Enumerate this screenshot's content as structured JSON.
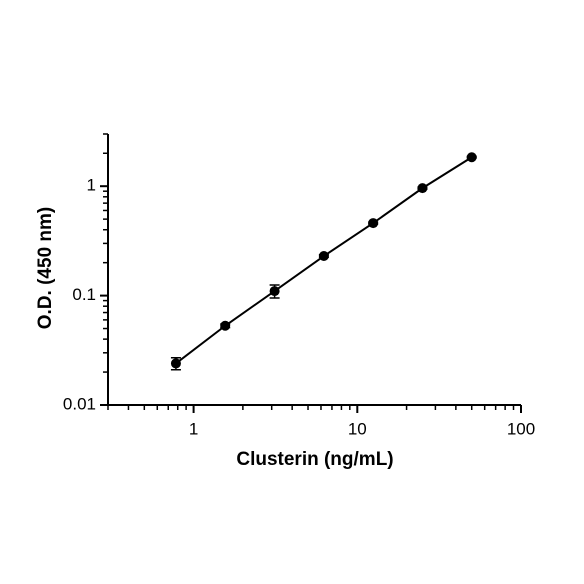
{
  "chart_data": {
    "type": "scatter",
    "x_label": "Clusterin (ng/mL)",
    "y_label": "O.D. (450 nm)",
    "x_log": true,
    "y_log": true,
    "xlim": [
      0.3,
      100
    ],
    "ylim": [
      0.01,
      3
    ],
    "xticks": [
      1,
      10,
      100
    ],
    "yticks": [
      0.01,
      0.1,
      1
    ],
    "xminorticks": [
      0.3,
      0.4,
      0.5,
      0.6,
      0.7,
      0.8,
      0.9,
      2,
      3,
      4,
      5,
      6,
      7,
      8,
      9,
      20,
      30,
      40,
      50,
      60,
      70,
      80,
      90
    ],
    "yminorticks": [
      0.02,
      0.03,
      0.04,
      0.05,
      0.06,
      0.07,
      0.08,
      0.09,
      0.2,
      0.3,
      0.4,
      0.5,
      0.6,
      0.7,
      0.8,
      0.9,
      2,
      3
    ],
    "series": [
      {
        "color": "#000000",
        "x": [
          0.78,
          1.56,
          3.125,
          6.25,
          12.5,
          25,
          50
        ],
        "values": [
          0.024,
          0.053,
          0.11,
          0.23,
          0.46,
          0.96,
          1.84
        ],
        "errors": [
          0.003,
          0.002,
          0.015,
          0.006,
          0.01,
          0.02,
          0.03
        ]
      }
    ]
  }
}
